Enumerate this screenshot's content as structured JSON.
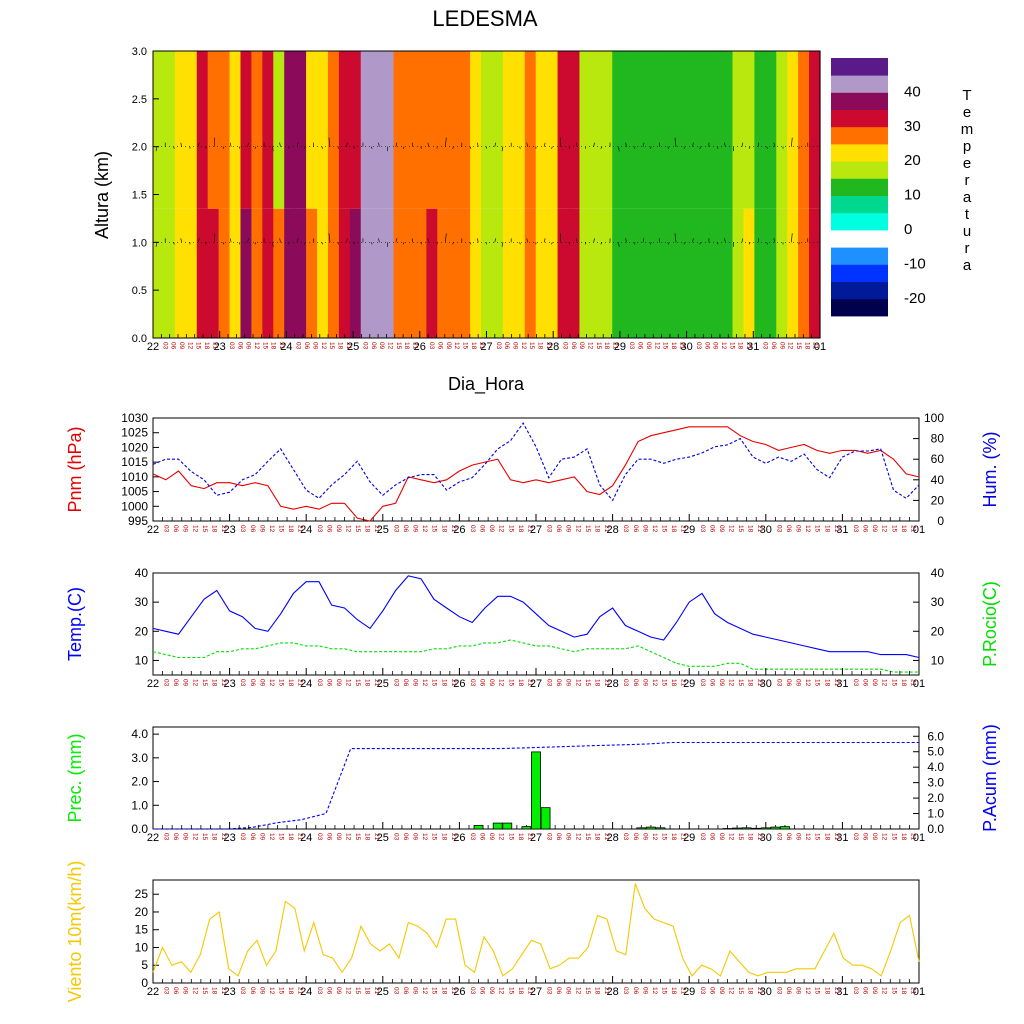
{
  "title": "LEDESMA",
  "colorbar": {
    "label_letters": [
      "T",
      "e",
      "m",
      "p",
      "e",
      "r",
      "a",
      "t",
      "u",
      "r",
      "a"
    ],
    "colors": [
      "#00004d",
      "#001a99",
      "#0033ff",
      "#1e90ff",
      "#ffffff",
      "#00ffe0",
      "#00d890",
      "#21b81f",
      "#b8e80e",
      "#ffe000",
      "#ff7000",
      "#cc0a30",
      "#8b0a5a",
      "#b098c8",
      "#5a1a8a"
    ],
    "tick_labels": [
      "-20",
      "-10",
      "0",
      "10",
      "20",
      "30",
      "40"
    ]
  },
  "colors": {
    "pnm": "#e80000",
    "hum": "#0000e0",
    "temp": "#0000ff",
    "rocio": "#00e000",
    "prec": "#00ee00",
    "acum": "#0000ff",
    "viento": "#f5c800",
    "hourtick": "#c00000"
  },
  "chart_data": [
    {
      "type": "heatmap",
      "title": "LEDESMA",
      "xlabel": "Dia_Hora",
      "ylabel": "Altura (km)",
      "y_tick_labels": [
        "0.0",
        "0.5",
        "1.0",
        "1.5",
        "2.0",
        "2.5",
        "3.0"
      ],
      "ylim": [
        0,
        3
      ],
      "day_labels": [
        "22",
        "23",
        "24",
        "25",
        "26",
        "27",
        "28",
        "29",
        "30",
        "31",
        "01"
      ],
      "hour_labels": [
        "03",
        "06",
        "09",
        "12",
        "15",
        "18",
        "21"
      ],
      "colorbar_title": "Temperatura",
      "columns_temperature_top": [
        19,
        19,
        21,
        23,
        30,
        27,
        28,
        24,
        32,
        29,
        33,
        18,
        36,
        35,
        22,
        22,
        28,
        32,
        33,
        43,
        41,
        43,
        27,
        27,
        27,
        27,
        27,
        27,
        26,
        21,
        17,
        17,
        20,
        23,
        25,
        21,
        20,
        33,
        31,
        19,
        17,
        17,
        14,
        14,
        14,
        14,
        14,
        14,
        14,
        14,
        14,
        14,
        14,
        16,
        16,
        12,
        12,
        19,
        22,
        26,
        31
      ],
      "columns_temperature_bottom": [
        19,
        19,
        21,
        23,
        33,
        33,
        28,
        24,
        38,
        29,
        33,
        26,
        36,
        35,
        28,
        22,
        28,
        34,
        38,
        43,
        41,
        43,
        27,
        27,
        27,
        33,
        27,
        27,
        29,
        21,
        17,
        17,
        20,
        23,
        25,
        24,
        20,
        33,
        33,
        19,
        17,
        17,
        14,
        14,
        14,
        14,
        14,
        14,
        14,
        14,
        14,
        14,
        14,
        16,
        21,
        12,
        12,
        19,
        22,
        26,
        31
      ],
      "wind_levels_km": [
        1.0,
        2.0
      ]
    },
    {
      "type": "line",
      "x_day_labels": [
        "22",
        "23",
        "24",
        "25",
        "26",
        "27",
        "28",
        "29",
        "30",
        "31",
        "01"
      ],
      "series": [
        {
          "name": "Pnm (hPa)",
          "axis": "left",
          "style": "solid",
          "values": [
            1011,
            1009,
            1012,
            1007,
            1006,
            1008,
            1008,
            1007,
            1008,
            1007,
            1000,
            999,
            1000,
            999,
            1001,
            1001,
            996,
            995,
            1000,
            1001,
            1010,
            1009,
            1008,
            1009,
            1012,
            1014,
            1015,
            1016,
            1009,
            1008,
            1009,
            1008,
            1009,
            1010,
            1005,
            1004,
            1007,
            1014,
            1022,
            1024,
            1025,
            1026,
            1027,
            1027,
            1027,
            1027,
            1024,
            1022,
            1021,
            1019,
            1020,
            1021,
            1019,
            1018,
            1019,
            1019,
            1018,
            1019,
            1016,
            1011,
            1010
          ]
        },
        {
          "name": "Hum. (%)",
          "axis": "right",
          "style": "dashed",
          "values": [
            55,
            60,
            60,
            48,
            40,
            25,
            28,
            40,
            45,
            58,
            70,
            50,
            30,
            22,
            35,
            45,
            58,
            38,
            25,
            35,
            42,
            45,
            45,
            30,
            38,
            42,
            55,
            70,
            78,
            95,
            72,
            42,
            60,
            62,
            70,
            35,
            20,
            45,
            60,
            60,
            56,
            60,
            62,
            66,
            72,
            74,
            80,
            62,
            56,
            62,
            58,
            65,
            50,
            42,
            62,
            68,
            68,
            70,
            30,
            22,
            35
          ]
        },
        {
          "name": "Temp.(C)",
          "axis": "left",
          "style": "solid",
          "values": [
            21,
            20,
            19,
            25,
            31,
            34,
            27,
            25,
            21,
            20,
            26,
            33,
            37,
            37,
            29,
            28,
            24,
            21,
            27,
            34,
            39,
            38,
            31,
            28,
            25,
            23,
            28,
            32,
            32,
            30,
            26,
            22,
            20,
            18,
            19,
            25,
            28,
            22,
            20,
            18,
            17,
            23,
            30,
            33,
            26,
            23,
            21,
            19,
            18,
            17,
            16,
            15,
            14,
            13,
            13,
            13,
            13,
            12,
            12,
            12,
            11
          ]
        },
        {
          "name": "P.Rocio(C)",
          "axis": "right",
          "style": "dashed",
          "values": [
            13,
            12,
            11,
            11,
            11,
            13,
            13,
            14,
            14,
            15,
            16,
            16,
            15,
            15,
            14,
            14,
            13,
            13,
            13,
            13,
            13,
            13,
            14,
            14,
            15,
            15,
            16,
            16,
            17,
            16,
            15,
            15,
            14,
            13,
            14,
            14,
            14,
            14,
            15,
            13,
            11,
            9,
            8,
            8,
            8,
            9,
            9,
            7,
            7,
            7,
            7,
            7,
            7,
            7,
            7,
            7,
            7,
            7,
            6,
            6,
            6
          ]
        },
        {
          "name": "Viento 10m(km/h)",
          "axis": "left",
          "style": "solid",
          "values": [
            3,
            10,
            5,
            6,
            3,
            8,
            18,
            20,
            4,
            2,
            9,
            12,
            5,
            9,
            23,
            21,
            9,
            17,
            8,
            7,
            3,
            7,
            16,
            11,
            9,
            11,
            7,
            17,
            16,
            14,
            10,
            18,
            18,
            5,
            3,
            13,
            9,
            2,
            4,
            8,
            12,
            11,
            4,
            5,
            7,
            7,
            10,
            19,
            18,
            9,
            8,
            28,
            21,
            18,
            17,
            16,
            7,
            2,
            5,
            4,
            2,
            9,
            6,
            3,
            2,
            3,
            3,
            3,
            4,
            4,
            4,
            9,
            14,
            7,
            5,
            5,
            4,
            2,
            9,
            17,
            19,
            6
          ]
        }
      ]
    },
    {
      "type": "bar",
      "name": "Prec. (mm)",
      "bar_days_hours": [
        "26-06",
        "26-09",
        "26-12",
        "26-15",
        "26-18",
        "26-21",
        "27-00",
        "27-03",
        "27-06",
        "27-09",
        "27-12",
        "27-15",
        "28-09",
        "28-12",
        "28-15",
        "28-18",
        "29-12",
        "29-15",
        "29-18",
        "29-21",
        "30-00",
        "30-03",
        "30-06"
      ],
      "values": [
        0.15,
        0,
        0.25,
        0.25,
        0,
        0.1,
        3.25,
        0.9,
        0,
        0,
        0,
        0,
        0.05,
        0.08,
        0.05,
        0,
        0.02,
        0.04,
        0.05,
        0.03,
        0.05,
        0.08,
        0.1
      ],
      "acum_series": {
        "name": "P.Acum (mm)",
        "values": [
          0,
          0,
          0,
          0,
          0.1,
          0.4,
          0.6,
          1.0,
          5.2,
          5.2,
          5.2,
          5.2,
          5.2,
          5.2,
          5.2,
          5.25,
          5.3,
          5.35,
          5.4,
          5.45,
          5.5,
          5.6,
          5.6,
          5.6,
          5.6,
          5.6,
          5.6,
          5.6,
          5.6,
          5.6,
          5.6,
          5.6
        ]
      }
    }
  ],
  "panels": {
    "pnm_hum": {
      "ylabel_left": "Pnm (hPa)",
      "ylabel_right": "Hum. (%)",
      "left_ticks": [
        "995",
        "1000",
        "1005",
        "1010",
        "1015",
        "1020",
        "1025",
        "1030"
      ],
      "right_ticks": [
        "0",
        "20",
        "40",
        "60",
        "80",
        "100"
      ]
    },
    "temp": {
      "ylabel_left": "Temp.(C)",
      "ylabel_right": "P.Rocio(C)",
      "left_ticks": [
        "10",
        "20",
        "30",
        "40"
      ],
      "right_ticks": [
        "10",
        "20",
        "30",
        "40"
      ]
    },
    "prec": {
      "ylabel_left": "Prec. (mm)",
      "ylabel_right": "P.Acum (mm)",
      "left_ticks": [
        "0.0",
        "1.0",
        "2.0",
        "3.0",
        "4.0"
      ],
      "right_ticks": [
        "0.0",
        "1.0",
        "2.0",
        "3.0",
        "4.0",
        "5.0",
        "6.0"
      ]
    },
    "viento": {
      "ylabel_left": "Viento 10m(km/h)",
      "left_ticks": [
        "0",
        "5",
        "10",
        "15",
        "20",
        "25"
      ]
    }
  }
}
